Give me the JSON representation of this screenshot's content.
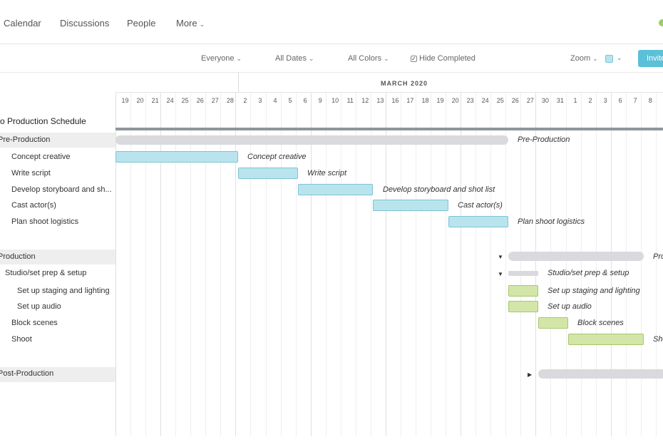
{
  "nav": {
    "calendar": "Calendar",
    "discussions": "Discussions",
    "people": "People",
    "more": "More"
  },
  "toolbar": {
    "everyone": "Everyone",
    "all_dates": "All Dates",
    "all_colors": "All Colors",
    "hide_completed": "Hide Completed",
    "hide_completed_checked": true,
    "zoom": "Zoom",
    "invite": "Invite"
  },
  "timeline": {
    "month": "MARCH 2020",
    "days": [
      "19",
      "20",
      "21",
      "24",
      "25",
      "26",
      "27",
      "28",
      "2",
      "3",
      "4",
      "5",
      "6",
      "9",
      "10",
      "11",
      "12",
      "13",
      "16",
      "17",
      "18",
      "19",
      "20",
      "23",
      "24",
      "25",
      "26",
      "27",
      "30",
      "31",
      "1",
      "2",
      "3",
      "6",
      "7",
      "8"
    ]
  },
  "project": {
    "title": "o Production Schedule"
  },
  "tasks": {
    "pre_production": "Pre-Production",
    "concept_creative": "Concept creative",
    "write_script": "Write script",
    "develop_storyboard": "Develop storyboard and sh...",
    "cast_actors": "Cast actor(s)",
    "plan_shoot": "Plan shoot logistics",
    "production": "Production",
    "studio_setup": "Studio/set prep & setup",
    "staging_lighting": "Set up staging and lighting",
    "audio": "Set up audio",
    "block_scenes": "Block scenes",
    "shoot": "Shoot",
    "post_production": "Post-Production"
  },
  "bar_labels": {
    "pre_production": "Pre-Production",
    "concept_creative": "Concept creative",
    "write_script": "Write script",
    "develop_storyboard": "Develop storyboard and shot list",
    "cast_actors": "Cast actor(s)",
    "plan_shoot": "Plan shoot logistics",
    "production": "Pro",
    "studio_setup": "Studio/set prep & setup",
    "staging_lighting": "Set up staging and lighting",
    "audio": "Set up audio",
    "block_scenes": "Block scenes",
    "shoot": "Sho"
  },
  "colors": {
    "accent": "#5bc0d8",
    "pre_production_bars": "#b9e4ee",
    "production_bars": "#d3e6a8",
    "group_bars": "#d9d9de"
  },
  "icons": {
    "chevron": "chevron-down-icon",
    "collapse": "triangle-down-icon",
    "expand": "triangle-right-icon"
  }
}
